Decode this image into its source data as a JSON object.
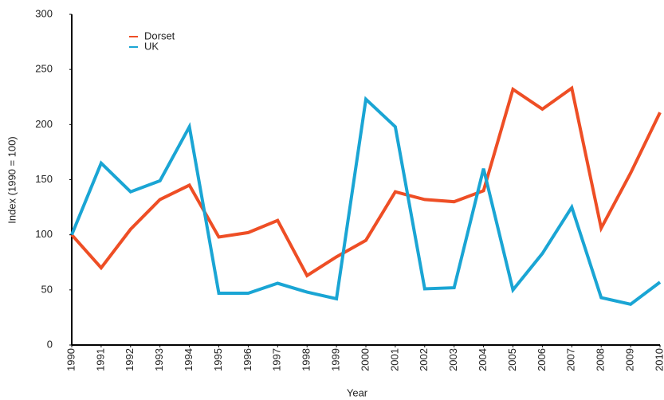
{
  "chart_data": {
    "type": "line",
    "xlabel": "Year",
    "ylabel": "Index (1990 = 100)",
    "x": [
      1990,
      1991,
      1992,
      1993,
      1994,
      1995,
      1996,
      1997,
      1998,
      1999,
      2000,
      2001,
      2002,
      2003,
      2004,
      2005,
      2006,
      2007,
      2008,
      2009,
      2010
    ],
    "series": [
      {
        "name": "Dorset",
        "color": "#ee4e25",
        "values": [
          100,
          70,
          105,
          132,
          145,
          98,
          102,
          113,
          63,
          80,
          95,
          139,
          132,
          130,
          140,
          232,
          214,
          233,
          106,
          156,
          211
        ]
      },
      {
        "name": "UK",
        "color": "#1aa5d4",
        "values": [
          100,
          165,
          139,
          149,
          198,
          47,
          47,
          56,
          48,
          42,
          223,
          198,
          51,
          52,
          160,
          50,
          83,
          125,
          43,
          37,
          57
        ]
      }
    ],
    "xlim": [
      1990,
      2010
    ],
    "xticks": [
      1990,
      1991,
      1992,
      1993,
      1994,
      1995,
      1996,
      1997,
      1998,
      1999,
      2000,
      2001,
      2002,
      2003,
      2004,
      2005,
      2006,
      2007,
      2008,
      2009,
      2010
    ],
    "ylim": [
      0,
      300
    ],
    "yticks": [
      0,
      50,
      100,
      150,
      200,
      250,
      300
    ],
    "grid": false,
    "legend": "upper left"
  }
}
